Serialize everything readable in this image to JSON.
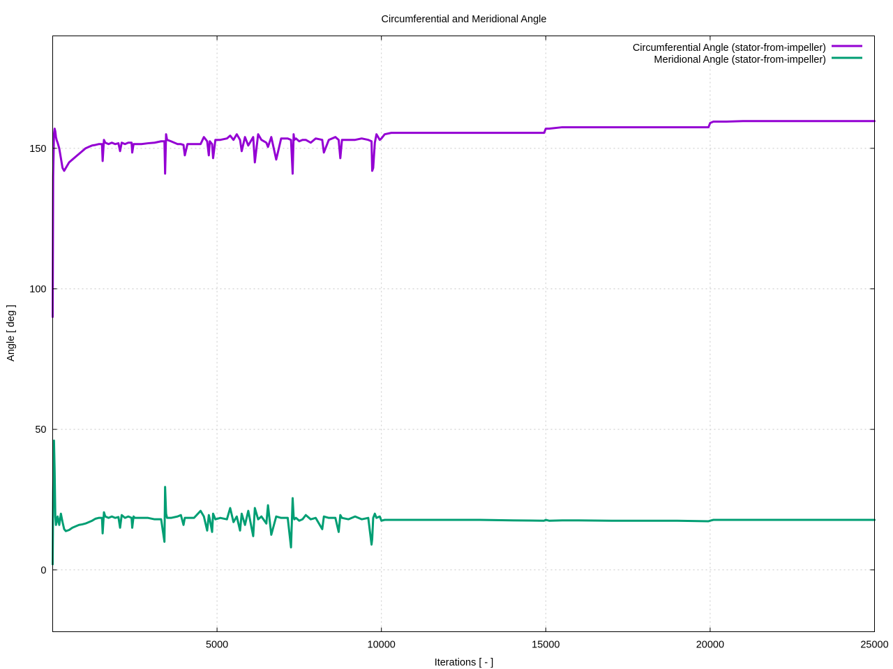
{
  "chart_data": {
    "type": "line",
    "title": "Circumferential and Meridional Angle",
    "xlabel": "Iterations [ - ]",
    "ylabel": "Angle [ deg ]",
    "xlim": [
      0,
      25000
    ],
    "ylim": [
      -22,
      190
    ],
    "xticks": [
      5000,
      10000,
      15000,
      20000,
      25000
    ],
    "yticks": [
      0,
      50,
      100,
      150
    ],
    "grid": true,
    "legend_position": "top-right",
    "series": [
      {
        "name": "Circumferential Angle (stator-from-impeller)",
        "color": "#9400d3",
        "x": [
          0,
          15,
          40,
          60,
          80,
          100,
          120,
          150,
          200,
          300,
          350,
          400,
          500,
          600,
          700,
          800,
          900,
          1000,
          1100,
          1200,
          1300,
          1400,
          1500,
          1520,
          1560,
          1600,
          1700,
          1800,
          1900,
          2000,
          2050,
          2100,
          2200,
          2300,
          2400,
          2420,
          2460,
          2500,
          2700,
          2900,
          3100,
          3300,
          3400,
          3420,
          3450,
          3480,
          3600,
          3800,
          3900,
          3980,
          4020,
          4100,
          4300,
          4500,
          4600,
          4700,
          4750,
          4780,
          4850,
          4880,
          4950,
          5100,
          5300,
          5400,
          5500,
          5600,
          5700,
          5750,
          5850,
          5950,
          6100,
          6150,
          6250,
          6350,
          6500,
          6550,
          6650,
          6800,
          6950,
          7150,
          7250,
          7300,
          7330,
          7350,
          7400,
          7500,
          7600,
          7700,
          7850,
          8000,
          8200,
          8250,
          8400,
          8600,
          8700,
          8750,
          8800,
          9000,
          9200,
          9400,
          9600,
          9700,
          9720,
          9750,
          9800,
          9850,
          9950,
          10000,
          10100,
          10300,
          10500,
          10700,
          11000,
          12000,
          13000,
          14000,
          14950,
          15000,
          15100,
          15500,
          16000,
          17000,
          18000,
          19000,
          19950,
          20000,
          20100,
          20500,
          21000,
          22000,
          23000,
          24000,
          25000
        ],
        "y": [
          90,
          140,
          155,
          157,
          156,
          154,
          153,
          152,
          150,
          143,
          142,
          143,
          145,
          146,
          147,
          148,
          149,
          150,
          150.5,
          151,
          151.2,
          151.5,
          151.5,
          145.5,
          153,
          152,
          151.5,
          152,
          151.5,
          151.8,
          149,
          152,
          151.5,
          152,
          152,
          148.5,
          151.5,
          151.5,
          151.5,
          151.8,
          152,
          152.5,
          152.5,
          141,
          155,
          153,
          152.5,
          151.5,
          151.5,
          151.2,
          147.5,
          151.5,
          151.5,
          151.5,
          154,
          152.5,
          147.5,
          152.5,
          151.5,
          146.5,
          153,
          153,
          153.5,
          154.5,
          153,
          155,
          153,
          149,
          154,
          151,
          154,
          145,
          155,
          153,
          152,
          150.5,
          154,
          146,
          153.5,
          153.5,
          153,
          141,
          155,
          153,
          153.5,
          152.5,
          153,
          153,
          152,
          153.5,
          153,
          148.5,
          153,
          154,
          153,
          146.5,
          153,
          153,
          153,
          153.5,
          153,
          152.5,
          142,
          143,
          152,
          155,
          153,
          153.5,
          155,
          155.5,
          155.5,
          155.5,
          155.5,
          155.5,
          155.5,
          155.5,
          155.5,
          157,
          157,
          157.5,
          157.5,
          157.5,
          157.5,
          157.5,
          157.5,
          159,
          159.5,
          159.5,
          159.7,
          159.7,
          159.7,
          159.7,
          159.7
        ]
      },
      {
        "name": "Meridional Angle (stator-from-impeller)",
        "color": "#009e73",
        "x": [
          0,
          15,
          40,
          60,
          80,
          100,
          120,
          150,
          200,
          250,
          300,
          350,
          400,
          500,
          600,
          700,
          800,
          900,
          1000,
          1100,
          1200,
          1300,
          1400,
          1500,
          1520,
          1560,
          1600,
          1700,
          1800,
          1900,
          2000,
          2050,
          2100,
          2200,
          2300,
          2400,
          2420,
          2460,
          2500,
          2700,
          2900,
          3100,
          3300,
          3400,
          3420,
          3450,
          3480,
          3600,
          3800,
          3900,
          3980,
          4020,
          4100,
          4300,
          4500,
          4600,
          4700,
          4750,
          4780,
          4850,
          4880,
          4950,
          5100,
          5300,
          5400,
          5500,
          5600,
          5700,
          5750,
          5850,
          5950,
          6100,
          6150,
          6250,
          6350,
          6500,
          6550,
          6650,
          6800,
          6950,
          7150,
          7250,
          7300,
          7330,
          7350,
          7400,
          7500,
          7600,
          7700,
          7850,
          8000,
          8200,
          8250,
          8400,
          8600,
          8700,
          8750,
          8800,
          9000,
          9200,
          9400,
          9600,
          9700,
          9720,
          9750,
          9800,
          9850,
          9950,
          10000,
          10100,
          10300,
          10500,
          10700,
          11000,
          12000,
          13000,
          14000,
          14950,
          15000,
          15100,
          15500,
          16000,
          17000,
          18000,
          19000,
          19950,
          20000,
          20100,
          20500,
          21000,
          22000,
          23000,
          24000,
          25000
        ],
        "y": [
          2,
          28,
          46,
          35,
          19,
          16,
          17,
          19,
          16,
          20,
          17,
          14.5,
          13.8,
          14.2,
          15,
          15.5,
          16,
          16.2,
          16.5,
          17,
          17.5,
          18.2,
          18.5,
          18.5,
          13,
          20.5,
          19,
          18.5,
          19,
          18.5,
          18.8,
          15,
          19.5,
          18.5,
          19,
          18.5,
          15,
          19,
          18.5,
          18.5,
          18.5,
          18,
          18,
          10,
          29.5,
          20,
          18.5,
          18.5,
          19,
          19.5,
          16,
          18.5,
          18.5,
          18.5,
          21,
          19,
          14,
          19.5,
          18,
          13.5,
          20,
          18,
          18.5,
          18,
          22,
          17,
          19,
          14,
          20,
          16,
          21,
          12,
          22,
          18,
          19,
          16.5,
          23,
          12.5,
          19,
          18.5,
          18.5,
          8,
          25.5,
          19,
          18,
          18.5,
          17.5,
          18,
          19.5,
          18,
          18.5,
          14.5,
          19,
          18.5,
          18.5,
          13.5,
          19.5,
          18.5,
          18,
          19,
          18,
          18.5,
          9,
          11,
          18.5,
          20,
          18.5,
          19,
          17.5,
          17.8,
          17.8,
          17.8,
          17.8,
          17.8,
          17.8,
          17.8,
          17.6,
          17.5,
          17.8,
          17.5,
          17.6,
          17.6,
          17.5,
          17.5,
          17.5,
          17.3,
          17.5,
          17.8,
          17.8,
          17.8,
          17.8,
          17.8,
          17.8,
          17.8
        ]
      }
    ]
  }
}
